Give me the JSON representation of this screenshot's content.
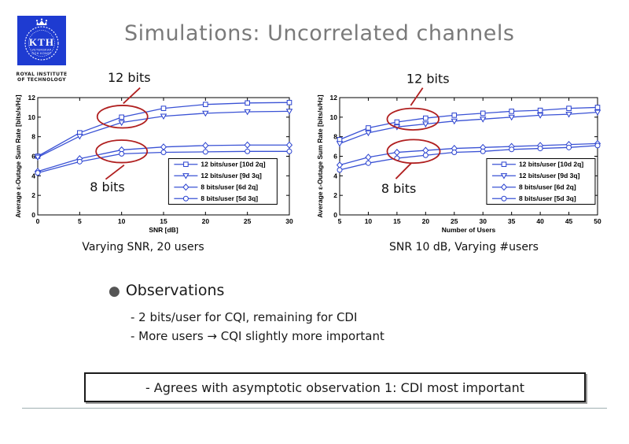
{
  "slide": {
    "title": "Simulations: Uncorrelated channels",
    "logo": {
      "acronym": "KTH",
      "motto_line1": "VETENSKAP",
      "motto_line2": "OCH KONST",
      "institute_line1": "ROYAL INSTITUTE",
      "institute_line2": "OF TECHNOLOGY"
    },
    "captions": {
      "left": "Varying SNR, 20 users",
      "right": "SNR 10 dB, Varying #users"
    },
    "observations": {
      "heading": "Observations",
      "items": [
        "- 2 bits/user for CQI, remaining for CDI",
        "- More users → CQI slightly more important"
      ],
      "boxed_note": "- Agrees with asymptotic observation 1: CDI most important"
    },
    "colors": {
      "line_blue": "#3a52d5",
      "marker_blue": "#2840cf",
      "annotation_red": "#b01f1f",
      "title_gray": "#7a7a7a",
      "logo_blue": "#1e3bd1"
    }
  },
  "chart_data": [
    {
      "type": "line",
      "title": "",
      "xlabel": "SNR [dB]",
      "ylabel": "Average ε-Outage Sum Rate [bits/s/Hz]",
      "caption": "Varying SNR, 20 users",
      "x": [
        0,
        5,
        10,
        15,
        20,
        25,
        30
      ],
      "xlim": [
        0,
        30
      ],
      "ylim": [
        0,
        12
      ],
      "xticks": [
        0,
        5,
        10,
        15,
        20,
        25,
        30
      ],
      "yticks": [
        0,
        2,
        4,
        6,
        8,
        10,
        12
      ],
      "grid": false,
      "legend_position": "inside-lower-right",
      "legend": {
        "fx": 0.52,
        "fy": 0.52
      },
      "series": [
        {
          "name": "12 bits/user [10d 2q]",
          "marker": "square",
          "values": [
            6.0,
            8.4,
            10.0,
            10.9,
            11.3,
            11.45,
            11.5
          ]
        },
        {
          "name": "12 bits/user [9d 3q]",
          "marker": "triangle-down",
          "values": [
            5.9,
            8.05,
            9.45,
            10.1,
            10.4,
            10.55,
            10.6
          ]
        },
        {
          "name": "8 bits/user [6d 2q]",
          "marker": "diamond",
          "values": [
            4.45,
            5.75,
            6.65,
            6.95,
            7.1,
            7.15,
            7.15
          ]
        },
        {
          "name": "8 bits/user [5d 3q]",
          "marker": "circle",
          "values": [
            4.3,
            5.45,
            6.25,
            6.4,
            6.45,
            6.5,
            6.5
          ]
        }
      ],
      "annotations": [
        {
          "label": "12 bits",
          "label_at": [
            10.9,
            13.6
          ],
          "ellipse": [
            10.1,
            10.05,
            3.0,
            1.15
          ],
          "line": [
            [
              10.2,
              11.4
            ],
            [
              12.2,
              13.0
            ]
          ]
        },
        {
          "label": "8 bits",
          "label_at": [
            8.3,
            2.4
          ],
          "ellipse": [
            10.0,
            6.5,
            3.05,
            1.15
          ],
          "line": [
            [
              8.1,
              3.65
            ],
            [
              10.3,
              5.1
            ]
          ]
        }
      ]
    },
    {
      "type": "line",
      "title": "",
      "xlabel": "Number of Users",
      "ylabel": "Average ε-Outage Sum Rate [bits/s/Hz]",
      "caption": "SNR 10 dB, Varying #users",
      "x": [
        5,
        10,
        15,
        20,
        25,
        30,
        35,
        40,
        45,
        50
      ],
      "xlim": [
        5,
        50
      ],
      "ylim": [
        0,
        12
      ],
      "xticks": [
        5,
        10,
        15,
        20,
        25,
        30,
        35,
        40,
        45,
        50
      ],
      "yticks": [
        0,
        2,
        4,
        6,
        8,
        10,
        12
      ],
      "grid": false,
      "legend_position": "inside-lower-right",
      "legend": {
        "fx": 0.57,
        "fy": 0.52
      },
      "series": [
        {
          "name": "12 bits/user [10d 2q]",
          "marker": "square",
          "values": [
            7.7,
            8.9,
            9.5,
            9.9,
            10.2,
            10.4,
            10.6,
            10.7,
            10.9,
            11.0
          ]
        },
        {
          "name": "12 bits/user [9d 3q]",
          "marker": "triangle-down",
          "values": [
            7.3,
            8.4,
            9.0,
            9.3,
            9.6,
            9.8,
            10.0,
            10.2,
            10.3,
            10.5
          ]
        },
        {
          "name": "8 bits/user [6d 2q]",
          "marker": "diamond",
          "values": [
            5.1,
            5.9,
            6.4,
            6.6,
            6.8,
            6.9,
            7.0,
            7.1,
            7.2,
            7.3
          ]
        },
        {
          "name": "8 bits/user [5d 3q]",
          "marker": "circle",
          "values": [
            4.6,
            5.3,
            5.8,
            6.1,
            6.4,
            6.5,
            6.7,
            6.8,
            6.9,
            7.1
          ]
        }
      ],
      "annotations": [
        {
          "label": "12 bits",
          "label_at": [
            20.4,
            13.5
          ],
          "ellipse": [
            17.8,
            9.8,
            4.5,
            1.1
          ],
          "line": [
            [
              17.4,
              11.2
            ],
            [
              19.5,
              13.0
            ]
          ]
        },
        {
          "label": "8 bits",
          "label_at": [
            15.3,
            2.25
          ],
          "ellipse": [
            17.9,
            6.5,
            4.6,
            1.2
          ],
          "line": [
            [
              14.8,
              3.7
            ],
            [
              17.5,
              5.3
            ]
          ]
        }
      ]
    }
  ]
}
